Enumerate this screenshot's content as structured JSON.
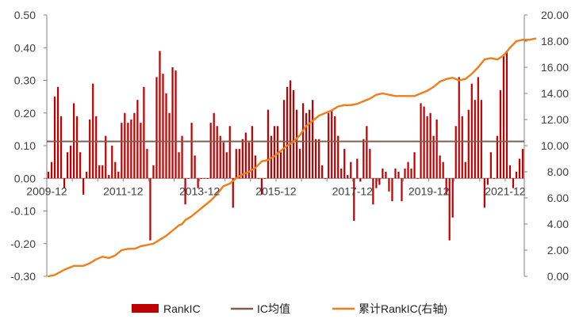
{
  "chart_data": {
    "type": "bar+line",
    "x_tick_labels": [
      "2009-12",
      "2011-12",
      "2013-12",
      "2015-12",
      "2017-12",
      "2019-12",
      "2021-12"
    ],
    "left_axis": {
      "ticks": [
        "0.50",
        "0.40",
        "0.30",
        "0.20",
        "0.10",
        "0.00",
        "-0.10",
        "-0.20",
        "-0.30"
      ],
      "ylim": [
        -0.3,
        0.5
      ]
    },
    "right_axis": {
      "ticks": [
        "20.00",
        "18.00",
        "16.00",
        "14.00",
        "12.00",
        "10.00",
        "8.00",
        "6.00",
        "4.00",
        "2.00",
        "0.00"
      ],
      "ylim": [
        0,
        20
      ]
    },
    "ic_mean": 0.113,
    "colors": {
      "rankic": "#c00000",
      "ic_mean": "#7f5f4f",
      "cumulative": "#f07c1a",
      "axis": "#808080"
    },
    "legend": [
      {
        "name": "RankIC",
        "symbol": "bar",
        "color": "#c00000"
      },
      {
        "name": "IC均值",
        "symbol": "line",
        "color": "#7f5f4f"
      },
      {
        "name": "累计RankIC(右轴)",
        "symbol": "line",
        "color": "#f07c1a"
      }
    ],
    "series": [
      {
        "name": "RankIC",
        "axis": "left",
        "values": [
          0.02,
          0.05,
          0.25,
          0.28,
          0.19,
          -0.03,
          0.08,
          0.1,
          0.23,
          0.19,
          0.08,
          -0.05,
          0.02,
          0.18,
          0.29,
          0.19,
          0.04,
          0.04,
          0.13,
          0.01,
          0.1,
          0.05,
          0.02,
          0.17,
          0.2,
          0.17,
          0.18,
          0.2,
          0.24,
          0.17,
          0.28,
          0.09,
          -0.19,
          0.04,
          0.31,
          0.39,
          0.32,
          0.26,
          0.2,
          0.34,
          0.33,
          0.08,
          0.13,
          -0.08,
          0.0,
          0.17,
          0.07,
          -0.03,
          0.0,
          0.0,
          0.0,
          0.17,
          0.2,
          0.16,
          0.13,
          0.11,
          0.08,
          0.16,
          -0.09,
          0.09,
          0.09,
          0.12,
          0.14,
          0.11,
          0.16,
          0.07,
          0.0,
          -0.05,
          0.0,
          0.21,
          0.13,
          0.16,
          0.16,
          0.08,
          0.24,
          0.28,
          0.3,
          0.27,
          0.21,
          0.09,
          0.23,
          0.2,
          0.21,
          0.24,
          0.12,
          0.12,
          0.04,
          0.0,
          0.2,
          0.21,
          0.19,
          0.13,
          0.03,
          0.09,
          0.01,
          0.05,
          -0.13,
          0.06,
          -0.01,
          0.12,
          0.16,
          0.09,
          -0.08,
          -0.03,
          -0.02,
          0.03,
          0.02,
          -0.04,
          -0.07,
          0.03,
          0.02,
          -0.07,
          0.03,
          0.05,
          0.03,
          0.08,
          0.0,
          0.23,
          0.22,
          0.19,
          0.2,
          0.13,
          0.18,
          0.07,
          0.05,
          -0.05,
          -0.19,
          -0.12,
          0.16,
          0.31,
          0.19,
          0.05,
          0.21,
          0.29,
          0.24,
          0.31,
          0.24,
          -0.09,
          -0.02,
          0.08,
          0.0,
          0.13,
          0.27,
          0.38,
          0.39,
          0.04,
          -0.03,
          0.02,
          0.06,
          0.09
        ]
      },
      {
        "name": "累计RankIC(右轴)",
        "axis": "right",
        "points": [
          [
            0,
            0.0
          ],
          [
            2,
            0.1
          ],
          [
            5,
            0.5
          ],
          [
            8,
            0.8
          ],
          [
            11,
            0.8
          ],
          [
            13,
            1.0
          ],
          [
            15,
            1.3
          ],
          [
            17,
            1.5
          ],
          [
            19,
            1.4
          ],
          [
            21,
            1.6
          ],
          [
            23,
            2.0
          ],
          [
            25,
            2.1
          ],
          [
            27,
            2.1
          ],
          [
            29,
            2.3
          ],
          [
            31,
            2.4
          ],
          [
            33,
            2.5
          ],
          [
            35,
            2.8
          ],
          [
            37,
            3.1
          ],
          [
            39,
            3.5
          ],
          [
            41,
            3.9
          ],
          [
            42,
            4.0
          ],
          [
            43,
            4.3
          ],
          [
            45,
            4.6
          ],
          [
            47,
            5.0
          ],
          [
            49,
            5.4
          ],
          [
            51,
            5.8
          ],
          [
            53,
            6.3
          ],
          [
            55,
            6.9
          ],
          [
            57,
            7.1
          ],
          [
            59,
            7.5
          ],
          [
            61,
            7.8
          ],
          [
            63,
            8.0
          ],
          [
            65,
            8.3
          ],
          [
            67,
            8.8
          ],
          [
            69,
            8.9
          ],
          [
            71,
            9.2
          ],
          [
            73,
            9.6
          ],
          [
            75,
            10.0
          ],
          [
            77,
            10.3
          ],
          [
            79,
            10.8
          ],
          [
            81,
            11.5
          ],
          [
            83,
            11.9
          ],
          [
            85,
            12.3
          ],
          [
            87,
            12.5
          ],
          [
            89,
            12.7
          ],
          [
            91,
            13.0
          ],
          [
            93,
            13.1
          ],
          [
            95,
            13.1
          ],
          [
            97,
            13.2
          ],
          [
            99,
            13.4
          ],
          [
            101,
            13.6
          ],
          [
            103,
            13.9
          ],
          [
            105,
            14.0
          ],
          [
            107,
            13.9
          ],
          [
            109,
            13.8
          ],
          [
            111,
            13.8
          ],
          [
            113,
            13.8
          ],
          [
            115,
            13.8
          ],
          [
            117,
            14.0
          ],
          [
            119,
            14.2
          ],
          [
            121,
            14.5
          ],
          [
            123,
            14.9
          ],
          [
            125,
            15.1
          ],
          [
            127,
            15.2
          ],
          [
            129,
            15.0
          ],
          [
            131,
            15.1
          ],
          [
            133,
            15.5
          ],
          [
            135,
            16.0
          ],
          [
            137,
            16.6
          ],
          [
            139,
            16.7
          ],
          [
            141,
            16.6
          ],
          [
            143,
            16.9
          ],
          [
            145,
            17.5
          ],
          [
            147,
            18.0
          ],
          [
            149,
            18.1
          ],
          [
            151,
            18.1
          ],
          [
            153,
            18.2
          ]
        ]
      }
    ]
  }
}
